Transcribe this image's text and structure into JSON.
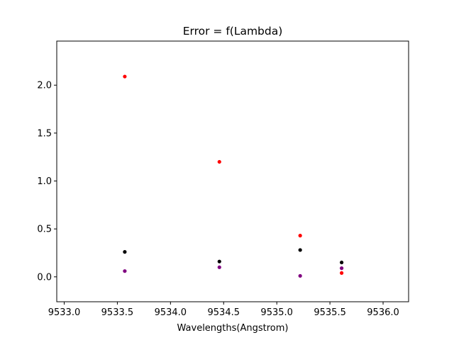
{
  "chart_data": {
    "type": "scatter",
    "title": "Error = f(Lambda)",
    "xlabel": "Wavelengths(Angstrom)",
    "ylabel": "",
    "xlim": [
      9532.93,
      9536.24
    ],
    "ylim": [
      -0.26,
      2.46
    ],
    "xticks": [
      "9533.0",
      "9533.5",
      "9534.0",
      "9534.5",
      "9535.0",
      "9535.5",
      "9536.0"
    ],
    "xtick_values": [
      9533.0,
      9533.5,
      9534.0,
      9534.5,
      9535.0,
      9535.5,
      9536.0
    ],
    "yticks": [
      "0.0",
      "0.5",
      "1.0",
      "1.5",
      "2.0"
    ],
    "ytick_values": [
      0.0,
      0.5,
      1.0,
      1.5,
      2.0
    ],
    "grid": false,
    "series": [
      {
        "color": "#ff0000",
        "points": [
          [
            9533.57,
            2.09
          ],
          [
            9534.46,
            1.2
          ],
          [
            9535.22,
            0.43
          ],
          [
            9535.61,
            0.04
          ]
        ]
      },
      {
        "color": "#000000",
        "points": [
          [
            9533.57,
            0.26
          ],
          [
            9534.46,
            0.16
          ],
          [
            9535.22,
            0.28
          ],
          [
            9535.61,
            0.15
          ]
        ]
      },
      {
        "color": "#800080",
        "points": [
          [
            9533.57,
            0.06
          ],
          [
            9534.46,
            0.1
          ],
          [
            9535.22,
            0.01
          ],
          [
            9535.61,
            0.09
          ]
        ]
      }
    ]
  }
}
